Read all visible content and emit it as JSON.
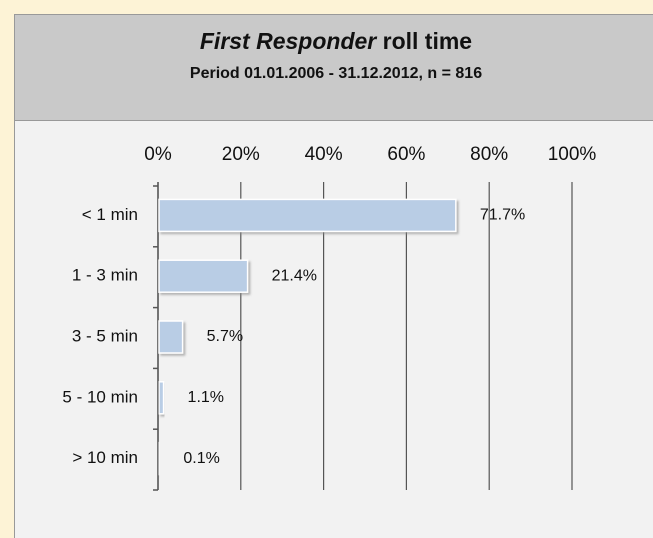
{
  "chart_data": {
    "type": "hbar",
    "title": {
      "emphasis": "First Responder",
      "rest": "roll time"
    },
    "subtitle": "Period 01.01.2006 - 31.12.2012, n = 816",
    "categories": [
      "< 1 min",
      "1 - 3 min",
      "3 - 5 min",
      "5 - 10 min",
      "> 10 min"
    ],
    "values": [
      71.7,
      21.4,
      5.7,
      1.1,
      0.1
    ],
    "value_labels": [
      "71.7%",
      "21.4%",
      "5.7%",
      "1.1%",
      "0.1%"
    ],
    "color": "#b9cde5",
    "xlim": [
      0,
      100
    ],
    "xticks": [
      {
        "value": 0,
        "label": "0%"
      },
      {
        "value": 20,
        "label": "20%"
      },
      {
        "value": 40,
        "label": "40%"
      },
      {
        "value": 60,
        "label": "60%"
      },
      {
        "value": 80,
        "label": "80%"
      },
      {
        "value": 100,
        "label": "100%"
      }
    ],
    "grid": true
  }
}
